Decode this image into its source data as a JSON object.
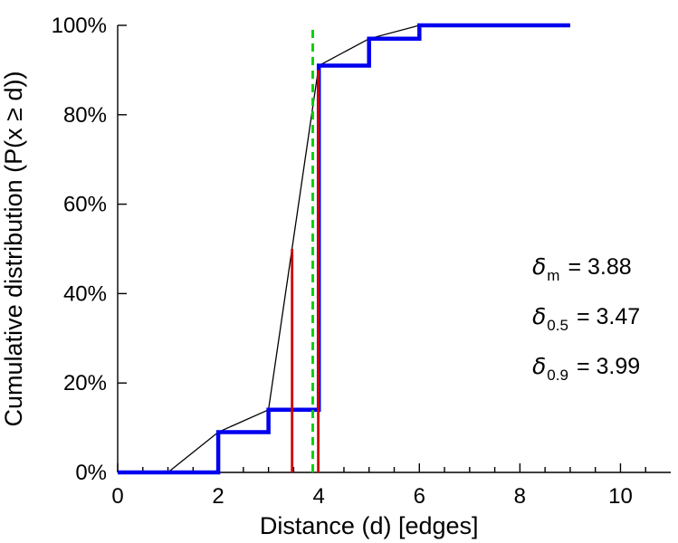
{
  "chart_data": {
    "type": "line",
    "title": "",
    "xlabel": "Distance (d) [edges]",
    "ylabel": "Cumulative distribution (P(x  ≥ d))",
    "xlim": [
      0,
      11
    ],
    "ylim": [
      0,
      100
    ],
    "x_major_ticks": [
      0,
      2,
      4,
      6,
      8,
      10
    ],
    "x_minor_step": 0.5,
    "x_tick_max": 10.5,
    "y_ticks": [
      0,
      20,
      40,
      60,
      80,
      100
    ],
    "y_tick_labels": [
      "0%",
      "20%",
      "40%",
      "60%",
      "80%",
      "100%"
    ],
    "grid": false,
    "legend": "none",
    "series": [
      {
        "name": "interpolated-cdf-line",
        "color": "#000000",
        "width": 1.3,
        "points": [
          [
            0,
            0
          ],
          [
            1,
            0
          ],
          [
            2,
            9
          ],
          [
            3,
            14
          ],
          [
            4,
            91
          ],
          [
            5,
            97
          ],
          [
            6,
            100
          ],
          [
            9,
            100
          ]
        ]
      },
      {
        "name": "empirical-cdf-step",
        "color": "#0000ee",
        "width": 4.5,
        "points": [
          [
            0,
            0
          ],
          [
            2,
            0
          ],
          [
            2,
            9
          ],
          [
            3,
            9
          ],
          [
            3,
            14
          ],
          [
            4,
            14
          ],
          [
            4,
            91
          ],
          [
            5,
            91
          ],
          [
            5,
            97
          ],
          [
            6,
            97
          ],
          [
            6,
            100
          ],
          [
            9,
            100
          ]
        ]
      }
    ],
    "vlines": [
      {
        "name": "median-3.47",
        "x": 3.47,
        "y0": 0,
        "y1": 50,
        "color": "#cc0000",
        "width": 2.8,
        "dash": null
      },
      {
        "name": "p90-3.99",
        "x": 3.99,
        "y0": 0,
        "y1": 90,
        "color": "#cc0000",
        "width": 2.8,
        "dash": null
      },
      {
        "name": "mean-3.88",
        "x": 3.88,
        "y0": 0,
        "y1": 100,
        "color": "#00cc00",
        "width": 2.8,
        "dash": "9 6"
      }
    ],
    "annotations": [
      {
        "symbol": "δ",
        "subscript": "m",
        "text": "= 3.88"
      },
      {
        "symbol": "δ",
        "subscript": "0.5",
        "text": "= 3.47"
      },
      {
        "symbol": "δ",
        "subscript": "0.9",
        "text": "= 3.99"
      }
    ]
  }
}
